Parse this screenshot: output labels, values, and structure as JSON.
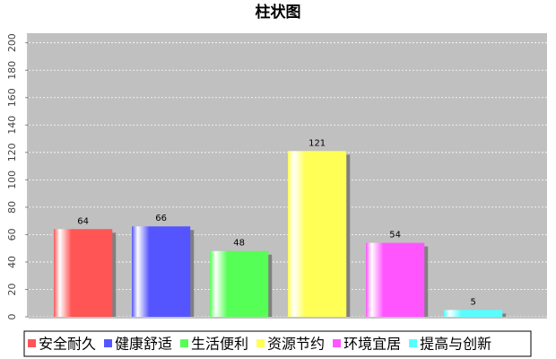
{
  "chart_data": {
    "type": "bar",
    "title": "柱状图",
    "categories": [
      null
    ],
    "series": [
      {
        "name": "安全耐久",
        "color": "#ff5555",
        "values": [
          64
        ]
      },
      {
        "name": "健康舒适",
        "color": "#5555ff",
        "values": [
          66
        ]
      },
      {
        "name": "生活便利",
        "color": "#55ff55",
        "values": [
          48
        ]
      },
      {
        "name": "资源节约",
        "color": "#ffff55",
        "values": [
          121
        ]
      },
      {
        "name": "环境宜居",
        "color": "#ff55ff",
        "values": [
          54
        ]
      },
      {
        "name": "提高与创新",
        "color": "#55ffff",
        "values": [
          5
        ]
      }
    ],
    "ylim": [
      0,
      207
    ],
    "yticks": [
      0,
      20,
      40,
      60,
      80,
      100,
      120,
      140,
      160,
      180,
      200
    ],
    "grid": true,
    "legend": "bottom"
  }
}
